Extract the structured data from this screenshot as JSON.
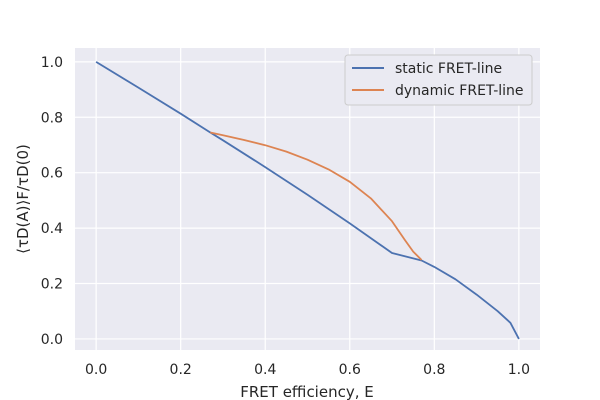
{
  "chart_data": {
    "type": "line",
    "title": "",
    "xlabel": "FRET efficiency, E",
    "ylabel": "⟨τD(A)⟩F/τD(0)",
    "xlim": [
      -0.05,
      1.05
    ],
    "ylim": [
      -0.04,
      1.05
    ],
    "x_ticks": [
      0.0,
      0.2,
      0.4,
      0.6,
      0.8,
      1.0
    ],
    "x_tick_labels": [
      "0.0",
      "0.2",
      "0.4",
      "0.6",
      "0.8",
      "1.0"
    ],
    "y_ticks": [
      0.0,
      0.2,
      0.4,
      0.6,
      0.8,
      1.0
    ],
    "y_tick_labels": [
      "0.0",
      "0.2",
      "0.4",
      "0.6",
      "0.8",
      "1.0"
    ],
    "grid": true,
    "legend_position": "top-right",
    "series": [
      {
        "name": "static FRET-line",
        "color": "#4c72b0",
        "x": [
          0.0,
          0.1,
          0.2,
          0.27,
          0.3,
          0.4,
          0.5,
          0.6,
          0.7,
          0.77,
          0.8,
          0.85,
          0.9,
          0.95,
          0.98,
          1.0
        ],
        "y": [
          1.0,
          0.907,
          0.813,
          0.745,
          0.717,
          0.62,
          0.52,
          0.417,
          0.31,
          0.283,
          0.26,
          0.215,
          0.16,
          0.1,
          0.058,
          0.0
        ]
      },
      {
        "name": "dynamic FRET-line",
        "color": "#dd8452",
        "x": [
          0.27,
          0.3,
          0.35,
          0.4,
          0.45,
          0.5,
          0.55,
          0.6,
          0.65,
          0.7,
          0.73,
          0.75,
          0.77
        ],
        "y": [
          0.745,
          0.735,
          0.718,
          0.699,
          0.676,
          0.647,
          0.612,
          0.567,
          0.507,
          0.425,
          0.358,
          0.315,
          0.285
        ]
      }
    ]
  }
}
